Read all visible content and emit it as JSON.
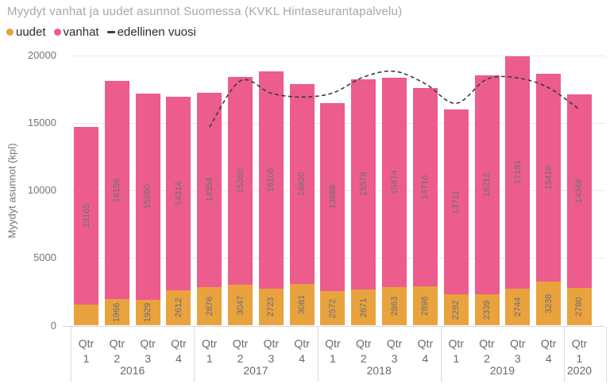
{
  "title": "Myydyt vanhat ja uudet asunnot Suomessa (KVKL Hintaseurantapalvelu)",
  "legend": {
    "items": [
      {
        "label": "uudet",
        "color": "#E8A23E",
        "marker": "dot"
      },
      {
        "label": "vanhat",
        "color": "#EC5C8C",
        "marker": "dot"
      },
      {
        "label": "edellinen vuosi",
        "color": "#3c3c3c",
        "marker": "dash"
      }
    ]
  },
  "chart_data": {
    "type": "bar",
    "stacked": true,
    "title": "Myydyt vanhat ja uudet asunnot Suomessa (KVKL Hintaseurantapalvelu)",
    "ylabel": "Myydyt asunnot (kpl)",
    "ylim": [
      0,
      20000
    ],
    "yticks": [
      0,
      5000,
      10000,
      15000,
      20000
    ],
    "ytick_labels": [
      "0",
      "5000",
      "10000",
      "15000",
      "20000"
    ],
    "grid": "horizontal",
    "legend_position": "top",
    "categories": [
      "2016 Qtr 1",
      "2016 Qtr 2",
      "2016 Qtr 3",
      "2016 Qtr 4",
      "2017 Qtr 1",
      "2017 Qtr 2",
      "2017 Qtr 3",
      "2017 Qtr 4",
      "2018 Qtr 1",
      "2018 Qtr 2",
      "2018 Qtr 3",
      "2018 Qtr 4",
      "2019 Qtr 1",
      "2019 Qtr 2",
      "2019 Qtr 3",
      "2019 Qtr 4",
      "2020 Qtr 1"
    ],
    "x_groups": [
      {
        "year": "2016",
        "quarters": [
          "Qtr 1",
          "Qtr 2",
          "Qtr 3",
          "Qtr 4"
        ]
      },
      {
        "year": "2017",
        "quarters": [
          "Qtr 1",
          "Qtr 2",
          "Qtr 3",
          "Qtr 4"
        ]
      },
      {
        "year": "2018",
        "quarters": [
          "Qtr 1",
          "Qtr 2",
          "Qtr 3",
          "Qtr 4"
        ]
      },
      {
        "year": "2019",
        "quarters": [
          "Qtr 1",
          "Qtr 2",
          "Qtr 3",
          "Qtr 4"
        ]
      },
      {
        "year": "2020",
        "quarters": [
          "Qtr 1"
        ]
      }
    ],
    "series": [
      {
        "name": "uudet",
        "color": "#E8A23E",
        "values": [
          1530,
          1966,
          1929,
          2612,
          2876,
          3047,
          2723,
          3081,
          2572,
          2671,
          2863,
          2898,
          2292,
          2339,
          2744,
          3238,
          2780
        ],
        "hidden_label_indexes": [
          0
        ]
      },
      {
        "name": "vanhat",
        "color": "#EC5C8C",
        "values": [
          13165,
          16156,
          15280,
          14314,
          14354,
          15360,
          16106,
          14830,
          13888,
          15578,
          15474,
          14716,
          13711,
          16212,
          17191,
          15416,
          14348
        ],
        "hidden_label_indexes": []
      }
    ],
    "line_series": {
      "name": "edellinen vuosi",
      "color": "#3c3c3c",
      "dashed": true,
      "values": [
        null,
        null,
        null,
        null,
        14695,
        18122,
        17209,
        16926,
        17230,
        18407,
        18829,
        17911,
        16460,
        18249,
        18337,
        17614,
        16003
      ]
    }
  }
}
